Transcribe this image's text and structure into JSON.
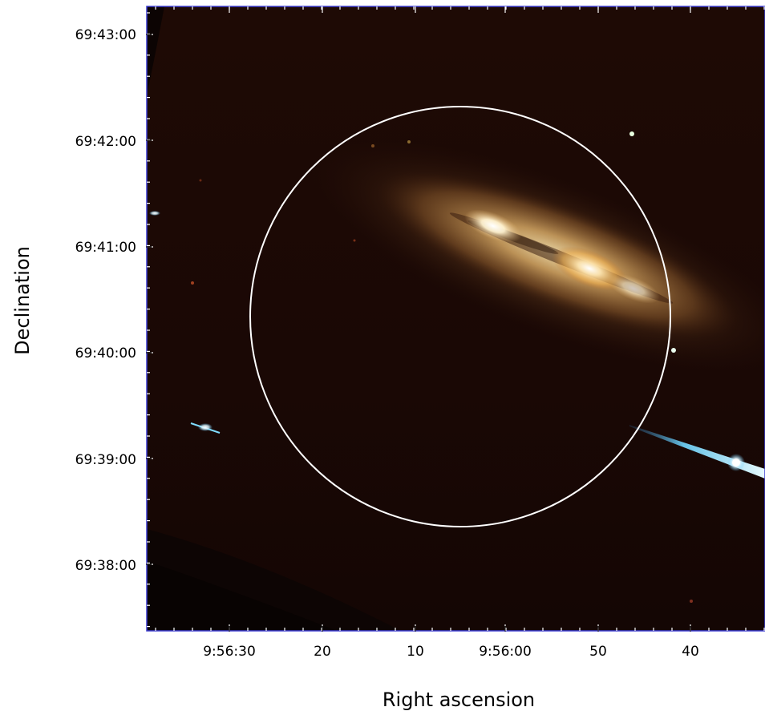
{
  "figure": {
    "image": {
      "subject": "galaxy",
      "palette": "false-color RGB astronomical image on dark background"
    },
    "overlay": {
      "shape": "circle",
      "color": "#ffffff"
    },
    "frame_color": "#3a3ad0",
    "y_axis": {
      "title": "Declination",
      "tick_labels": [
        "69:43:00",
        "69:42:00",
        "69:41:00",
        "69:40:00",
        "69:39:00",
        "69:38:00"
      ]
    },
    "x_axis": {
      "title": "Right ascension",
      "tick_labels": [
        "9:56:30",
        "20",
        "10",
        "9:56:00",
        "50",
        "40"
      ]
    }
  }
}
